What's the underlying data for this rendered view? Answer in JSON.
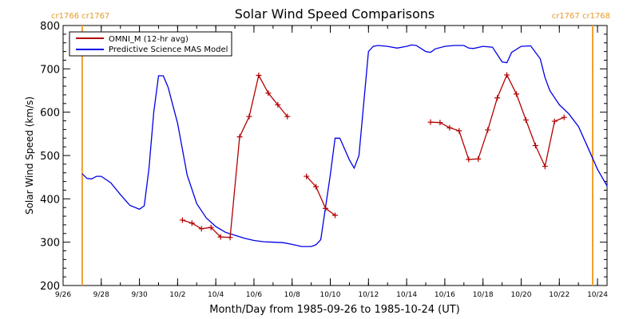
{
  "chart_data": {
    "type": "line",
    "title": "Solar Wind Speed Comparisons",
    "xlabel": "Month/Day from 1985-09-26 to 1985-10-24 (UT)",
    "ylabel": "Solar Wind Speed (km/s)",
    "xlim": [
      "1985-09-26",
      "1985-10-24T12:00"
    ],
    "ylim": [
      200,
      800
    ],
    "yticks": [
      200,
      300,
      400,
      500,
      600,
      700,
      800
    ],
    "xticks": [
      "9/26",
      "9/28",
      "9/30",
      "10/2",
      "10/4",
      "10/6",
      "10/8",
      "10/10",
      "10/12",
      "10/14",
      "10/16",
      "10/18",
      "10/20",
      "10/22",
      "10/24"
    ],
    "grid": false,
    "legend_position": "top-left",
    "carrington": [
      {
        "label": "cr1766 cr1767",
        "date": "1985-09-27T00:00",
        "position": "left"
      },
      {
        "label": "cr1767 cr1768",
        "date": "1985-10-24T12:00",
        "position": "right"
      }
    ],
    "colors": {
      "omni": "#b30000",
      "model": "#0000e6",
      "boundary": "#f0a030",
      "axis": "#000000"
    },
    "series": [
      {
        "name": "OMNI_M (12-hr avg)",
        "style": "line-plus",
        "segments": [
          [
            [
              "1985-10-02T06:00",
              351
            ],
            [
              "1985-10-02T18:00",
              344
            ],
            [
              "1985-10-03T06:00",
              331
            ],
            [
              "1985-10-03T18:00",
              334
            ],
            [
              "1985-10-04T06:00",
              312
            ],
            [
              "1985-10-04T18:00",
              311
            ],
            [
              "1985-10-05T06:00",
              543
            ],
            [
              "1985-10-05T18:00",
              590
            ],
            [
              "1985-10-06T06:00",
              685
            ],
            [
              "1985-10-06T18:00",
              644
            ],
            [
              "1985-10-07T06:00",
              617
            ],
            [
              "1985-10-07T18:00",
              590
            ]
          ],
          [
            [
              "1985-10-08T18:00",
              452
            ],
            [
              "1985-10-09T06:00",
              428
            ],
            [
              "1985-10-09T18:00",
              378
            ],
            [
              "1985-10-10T06:00",
              362
            ]
          ],
          [
            [
              "1985-10-15T06:00",
              577
            ],
            [
              "1985-10-15T18:00",
              576
            ],
            [
              "1985-10-16T06:00",
              564
            ],
            [
              "1985-10-16T18:00",
              557
            ],
            [
              "1985-10-17T06:00",
              491
            ],
            [
              "1985-10-17T18:00",
              492
            ],
            [
              "1985-10-18T06:00",
              559
            ],
            [
              "1985-10-18T18:00",
              633
            ],
            [
              "1985-10-19T06:00",
              686
            ],
            [
              "1985-10-19T18:00",
              642
            ],
            [
              "1985-10-20T06:00",
              582
            ],
            [
              "1985-10-20T18:00",
              523
            ],
            [
              "1985-10-21T06:00",
              475
            ],
            [
              "1985-10-21T18:00",
              579
            ],
            [
              "1985-10-22T06:00",
              588
            ]
          ]
        ]
      },
      {
        "name": "Predictive Science MAS Model",
        "style": "line",
        "points": [
          [
            "1985-09-27T00:00",
            458
          ],
          [
            "1985-09-27T06:00",
            447
          ],
          [
            "1985-09-27T12:00",
            446
          ],
          [
            "1985-09-27T18:00",
            452
          ],
          [
            "1985-09-28T00:00",
            452
          ],
          [
            "1985-09-28T12:00",
            437
          ],
          [
            "1985-09-29T00:00",
            410
          ],
          [
            "1985-09-29T12:00",
            385
          ],
          [
            "1985-09-30T00:00",
            376
          ],
          [
            "1985-09-30T06:00",
            384
          ],
          [
            "1985-09-30T12:00",
            470
          ],
          [
            "1985-09-30T18:00",
            600
          ],
          [
            "1985-10-01T00:00",
            684
          ],
          [
            "1985-10-01T06:00",
            684
          ],
          [
            "1985-10-01T12:00",
            658
          ],
          [
            "1985-10-02T00:00",
            574
          ],
          [
            "1985-10-02T12:00",
            455
          ],
          [
            "1985-10-03T00:00",
            389
          ],
          [
            "1985-10-03T12:00",
            356
          ],
          [
            "1985-10-04T00:00",
            336
          ],
          [
            "1985-10-04T12:00",
            323
          ],
          [
            "1985-10-05T00:00",
            316
          ],
          [
            "1985-10-05T12:00",
            309
          ],
          [
            "1985-10-06T00:00",
            304
          ],
          [
            "1985-10-06T12:00",
            301
          ],
          [
            "1985-10-07T00:00",
            300
          ],
          [
            "1985-10-07T12:00",
            299
          ],
          [
            "1985-10-08T00:00",
            295
          ],
          [
            "1985-10-08T12:00",
            290
          ],
          [
            "1985-10-09T00:00",
            290
          ],
          [
            "1985-10-09T06:00",
            294
          ],
          [
            "1985-10-09T12:00",
            306
          ],
          [
            "1985-10-10T00:00",
            455
          ],
          [
            "1985-10-10T06:00",
            540
          ],
          [
            "1985-10-10T12:00",
            540
          ],
          [
            "1985-10-11T00:00",
            490
          ],
          [
            "1985-10-11T06:00",
            471
          ],
          [
            "1985-10-11T12:00",
            500
          ],
          [
            "1985-10-12T00:00",
            740
          ],
          [
            "1985-10-12T06:00",
            752
          ],
          [
            "1985-10-12T12:00",
            754
          ],
          [
            "1985-10-13T00:00",
            752
          ],
          [
            "1985-10-13T12:00",
            748
          ],
          [
            "1985-10-14T00:00",
            752
          ],
          [
            "1985-10-14T06:00",
            755
          ],
          [
            "1985-10-14T12:00",
            754
          ],
          [
            "1985-10-15T00:00",
            740
          ],
          [
            "1985-10-15T06:00",
            738
          ],
          [
            "1985-10-15T12:00",
            746
          ],
          [
            "1985-10-16T00:00",
            752
          ],
          [
            "1985-10-16T12:00",
            754
          ],
          [
            "1985-10-17T00:00",
            754
          ],
          [
            "1985-10-17T06:00",
            748
          ],
          [
            "1985-10-17T12:00",
            747
          ],
          [
            "1985-10-18T00:00",
            752
          ],
          [
            "1985-10-18T12:00",
            750
          ],
          [
            "1985-10-19T00:00",
            716
          ],
          [
            "1985-10-19T06:00",
            714
          ],
          [
            "1985-10-19T12:00",
            738
          ],
          [
            "1985-10-20T00:00",
            752
          ],
          [
            "1985-10-20T12:00",
            753
          ],
          [
            "1985-10-21T00:00",
            723
          ],
          [
            "1985-10-21T06:00",
            680
          ],
          [
            "1985-10-21T12:00",
            650
          ],
          [
            "1985-10-22T00:00",
            617
          ],
          [
            "1985-10-22T12:00",
            596
          ],
          [
            "1985-10-23T00:00",
            567
          ],
          [
            "1985-10-23T12:00",
            518
          ],
          [
            "1985-10-24T00:00",
            468
          ],
          [
            "1985-10-24T12:00",
            430
          ]
        ]
      }
    ]
  }
}
